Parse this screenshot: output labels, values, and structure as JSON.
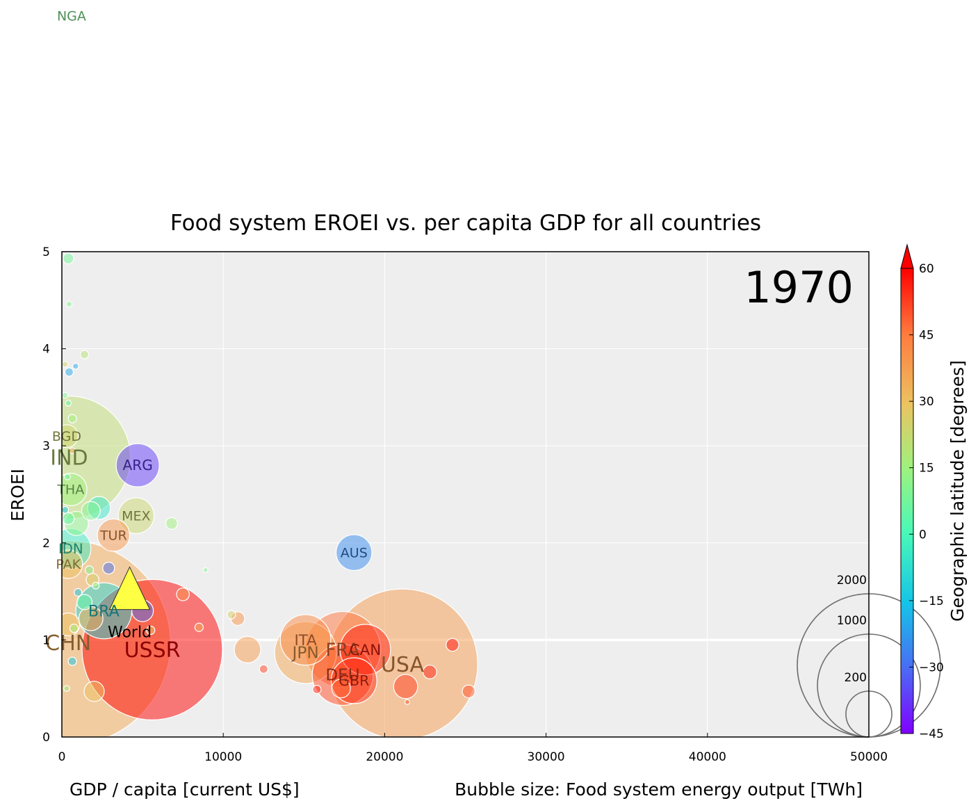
{
  "chart_data": {
    "type": "scatter",
    "title": "Food system EROEI vs. per capita GDP for all countries",
    "xlabel": "GDP / capita [current US$]",
    "ylabel": "EROEI",
    "size_label": "Bubble size: Food system energy output [TWh]",
    "colorbar_label": "Geographic latitude [degrees]",
    "year": "1970",
    "xlim": [
      0,
      50000
    ],
    "ylim": [
      0,
      5
    ],
    "xticks": [
      "0",
      "10000",
      "20000",
      "30000",
      "40000",
      "50000"
    ],
    "yticks": [
      "0",
      "1",
      "2",
      "3",
      "4",
      "5"
    ],
    "colorbar_ticks": [
      "60",
      "45",
      "30",
      "15",
      "0",
      "−15",
      "−30",
      "−45"
    ],
    "colorbar_range": [
      -45,
      60
    ],
    "size_legend": [
      {
        "label": "2000",
        "value": 2000
      },
      {
        "label": "1000",
        "value": 1000
      },
      {
        "label": "200",
        "value": 200
      }
    ],
    "grid": true,
    "labeled_points": [
      {
        "label": "NGA",
        "x": 600,
        "y": 7.4,
        "size": 0,
        "lat": 10
      },
      {
        "label": "BGD",
        "x": 300,
        "y": 3.1,
        "size": 45,
        "lat": 24
      },
      {
        "label": "IND",
        "x": 450,
        "y": 2.88,
        "size": 1300,
        "lat": 21
      },
      {
        "label": "ARG",
        "x": 4700,
        "y": 2.8,
        "size": 160,
        "lat": -37
      },
      {
        "label": "THA",
        "x": 550,
        "y": 2.55,
        "size": 90,
        "lat": 15
      },
      {
        "label": "MEX",
        "x": 4600,
        "y": 2.28,
        "size": 110,
        "lat": 23
      },
      {
        "label": "TUR",
        "x": 3200,
        "y": 2.08,
        "size": 90,
        "lat": 39
      },
      {
        "label": "IDN",
        "x": 550,
        "y": 1.94,
        "size": 140,
        "lat": -3
      },
      {
        "label": "PAK",
        "x": 400,
        "y": 1.78,
        "size": 70,
        "lat": 30
      },
      {
        "label": "AUS",
        "x": 18100,
        "y": 1.9,
        "size": 110,
        "lat": -25
      },
      {
        "label": "World",
        "x": 4200,
        "y": 1.5,
        "size": 0,
        "lat": 0
      },
      {
        "label": "BRA",
        "x": 2600,
        "y": 1.3,
        "size": 270,
        "lat": -10
      },
      {
        "label": "CHN",
        "x": 400,
        "y": 0.97,
        "size": 3600,
        "lat": 35
      },
      {
        "label": "USSR",
        "x": 5600,
        "y": 0.9,
        "size": 1700,
        "lat": 60
      },
      {
        "label": "ITA",
        "x": 15100,
        "y": 1.0,
        "size": 220,
        "lat": 42
      },
      {
        "label": "JPN",
        "x": 15100,
        "y": 0.87,
        "size": 330,
        "lat": 36
      },
      {
        "label": "FRA",
        "x": 17400,
        "y": 0.9,
        "size": 500,
        "lat": 46
      },
      {
        "label": "CAN",
        "x": 18800,
        "y": 0.9,
        "size": 220,
        "lat": 56
      },
      {
        "label": "USA",
        "x": 21100,
        "y": 0.75,
        "size": 1950,
        "lat": 38
      },
      {
        "label": "DEU",
        "x": 17400,
        "y": 0.64,
        "size": 320,
        "lat": 51
      },
      {
        "label": "GBR",
        "x": 18100,
        "y": 0.58,
        "size": 180,
        "lat": 54
      }
    ],
    "other_points": [
      {
        "x": 400,
        "y": 4.93,
        "size": 10,
        "lat": 8
      },
      {
        "x": 450,
        "y": 4.46,
        "size": 3,
        "lat": 10
      },
      {
        "x": 1400,
        "y": 3.94,
        "size": 6,
        "lat": 20
      },
      {
        "x": 200,
        "y": 3.84,
        "size": 3,
        "lat": 25
      },
      {
        "x": 850,
        "y": 3.82,
        "size": 3,
        "lat": -20
      },
      {
        "x": 450,
        "y": 3.76,
        "size": 6,
        "lat": -20
      },
      {
        "x": 200,
        "y": 3.52,
        "size": 3,
        "lat": 10
      },
      {
        "x": 400,
        "y": 3.44,
        "size": 3,
        "lat": 5
      },
      {
        "x": 650,
        "y": 3.28,
        "size": 6,
        "lat": 15
      },
      {
        "x": 650,
        "y": 2.95,
        "size": 3,
        "lat": 35
      },
      {
        "x": 350,
        "y": 2.68,
        "size": 3,
        "lat": 5
      },
      {
        "x": 2300,
        "y": 2.36,
        "size": 45,
        "lat": -5
      },
      {
        "x": 1800,
        "y": 2.33,
        "size": 30,
        "lat": 10
      },
      {
        "x": 900,
        "y": 2.2,
        "size": 50,
        "lat": 12
      },
      {
        "x": 400,
        "y": 2.25,
        "size": 12,
        "lat": 5
      },
      {
        "x": 6800,
        "y": 2.2,
        "size": 12,
        "lat": 15
      },
      {
        "x": 200,
        "y": 2.34,
        "size": 4,
        "lat": -15
      },
      {
        "x": 2900,
        "y": 1.74,
        "size": 12,
        "lat": -30
      },
      {
        "x": 1700,
        "y": 1.72,
        "size": 6,
        "lat": 10
      },
      {
        "x": 1900,
        "y": 1.62,
        "size": 14,
        "lat": 25
      },
      {
        "x": 2100,
        "y": 1.56,
        "size": 4,
        "lat": 15
      },
      {
        "x": 1000,
        "y": 1.49,
        "size": 5,
        "lat": -15
      },
      {
        "x": 1400,
        "y": 1.39,
        "size": 20,
        "lat": 5
      },
      {
        "x": 7500,
        "y": 1.47,
        "size": 14,
        "lat": 40
      },
      {
        "x": 5000,
        "y": 1.3,
        "size": 40,
        "lat": -30
      },
      {
        "x": 10900,
        "y": 1.22,
        "size": 16,
        "lat": 40
      },
      {
        "x": 10500,
        "y": 1.26,
        "size": 6,
        "lat": 25
      },
      {
        "x": 8500,
        "y": 1.13,
        "size": 6,
        "lat": 35
      },
      {
        "x": 1800,
        "y": 1.22,
        "size": 50,
        "lat": 35
      },
      {
        "x": 400,
        "y": 1.16,
        "size": 45,
        "lat": 30
      },
      {
        "x": 750,
        "y": 1.12,
        "size": 6,
        "lat": 15
      },
      {
        "x": 5500,
        "y": 1.1,
        "size": 6,
        "lat": 30
      },
      {
        "x": 11500,
        "y": 0.9,
        "size": 60,
        "lat": 38
      },
      {
        "x": 12500,
        "y": 0.7,
        "size": 6,
        "lat": 52
      },
      {
        "x": 24200,
        "y": 0.95,
        "size": 14,
        "lat": 58
      },
      {
        "x": 22800,
        "y": 0.67,
        "size": 16,
        "lat": 56
      },
      {
        "x": 21300,
        "y": 0.52,
        "size": 50,
        "lat": 52
      },
      {
        "x": 25200,
        "y": 0.47,
        "size": 14,
        "lat": 50
      },
      {
        "x": 15800,
        "y": 0.49,
        "size": 6,
        "lat": 55
      },
      {
        "x": 17300,
        "y": 0.5,
        "size": 30,
        "lat": 47
      },
      {
        "x": 2000,
        "y": 0.47,
        "size": 35,
        "lat": 30
      },
      {
        "x": 650,
        "y": 0.78,
        "size": 6,
        "lat": -15
      },
      {
        "x": 300,
        "y": 0.5,
        "size": 3,
        "lat": 15
      },
      {
        "x": 21400,
        "y": 0.36,
        "size": 2,
        "lat": 50
      },
      {
        "x": 8900,
        "y": 1.72,
        "size": 2,
        "lat": 10
      }
    ]
  }
}
